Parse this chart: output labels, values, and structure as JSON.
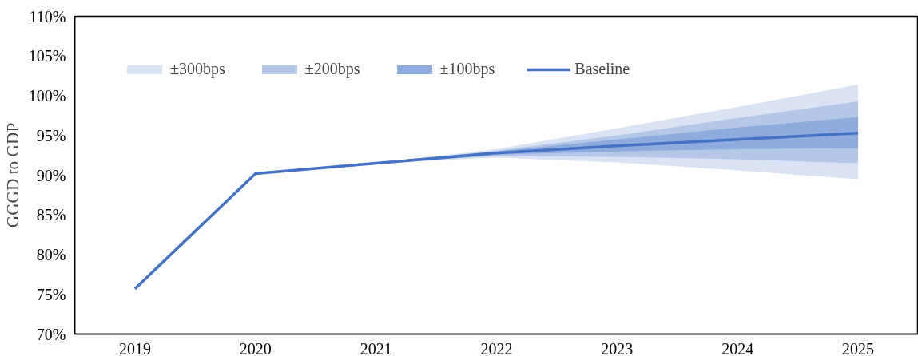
{
  "chart_data": {
    "type": "line",
    "ylabel": "GGGD to GDP",
    "categories": [
      "2019",
      "2020",
      "2021",
      "2022",
      "2023",
      "2024",
      "2025"
    ],
    "ylim": [
      70,
      110
    ],
    "yticks": [
      {
        "value": 70,
        "label": "70%"
      },
      {
        "value": 75,
        "label": "75%"
      },
      {
        "value": 80,
        "label": "80%"
      },
      {
        "value": 85,
        "label": "85%"
      },
      {
        "value": 90,
        "label": "90%"
      },
      {
        "value": 95,
        "label": "95%"
      },
      {
        "value": 100,
        "label": "100%"
      },
      {
        "value": 105,
        "label": "105%"
      },
      {
        "value": 110,
        "label": "110%"
      }
    ],
    "grid": false,
    "legend": "top",
    "series": [
      {
        "name": "±300bps",
        "type": "area",
        "color": "#dae3f3",
        "values": [
          null,
          null,
          null,
          null,
          null,
          null,
          null
        ],
        "lower": [
          null,
          null,
          91.5,
          92.2,
          91.6,
          90.6,
          89.5
        ],
        "upper": [
          null,
          null,
          91.5,
          93.3,
          95.9,
          98.6,
          101.4
        ]
      },
      {
        "name": "±200bps",
        "type": "area",
        "color": "#b4c7e7",
        "values": [
          null,
          null,
          null,
          null,
          null,
          null,
          null
        ],
        "lower": [
          null,
          null,
          91.5,
          92.4,
          92.3,
          92.0,
          91.5
        ],
        "upper": [
          null,
          null,
          91.5,
          93.1,
          95.0,
          97.2,
          99.3
        ]
      },
      {
        "name": "±100bps",
        "type": "area",
        "color": "#8faadc",
        "values": [
          null,
          null,
          null,
          null,
          null,
          null,
          null
        ],
        "lower": [
          null,
          null,
          91.5,
          92.6,
          93.0,
          93.3,
          93.4
        ],
        "upper": [
          null,
          null,
          91.5,
          93.0,
          94.5,
          96.0,
          97.3
        ]
      },
      {
        "name": "Baseline",
        "color": "#4472c4",
        "values": [
          75.7,
          90.2,
          91.5,
          92.8,
          93.7,
          94.5,
          95.3
        ]
      }
    ]
  }
}
